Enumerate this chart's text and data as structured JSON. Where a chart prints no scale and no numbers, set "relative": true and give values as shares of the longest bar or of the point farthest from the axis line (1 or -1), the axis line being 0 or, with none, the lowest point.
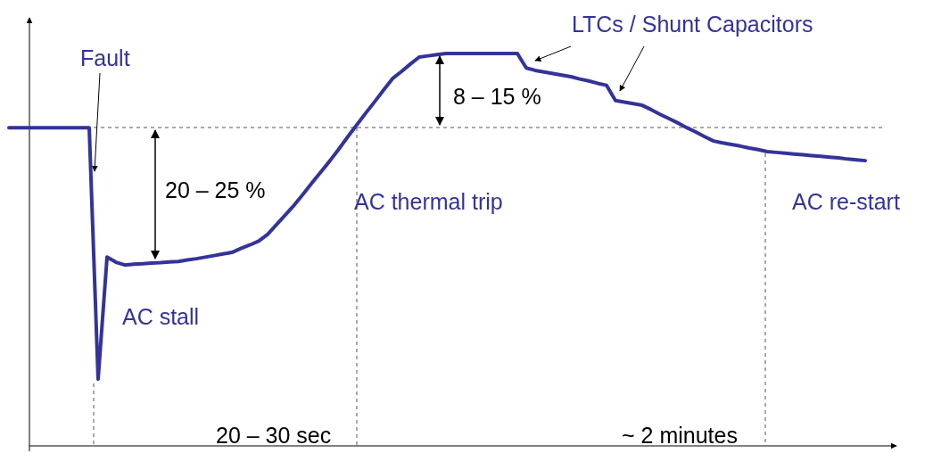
{
  "chart_data": {
    "type": "line",
    "relative": true,
    "line_style": "solid",
    "categories": [
      null,
      null,
      null,
      null,
      null,
      null,
      null,
      null,
      null,
      null,
      null,
      null,
      null,
      null,
      null,
      null,
      null,
      null,
      null,
      null,
      null,
      null,
      null,
      null,
      null,
      null,
      null,
      null,
      null,
      null,
      null,
      null,
      null,
      null,
      null,
      null,
      null,
      null,
      null,
      null,
      null,
      null,
      null,
      null,
      null,
      null,
      null,
      null,
      null,
      null,
      null,
      null,
      null,
      null,
      null,
      null,
      null,
      null,
      null,
      null,
      null,
      null,
      null,
      null,
      null,
      null,
      null,
      null,
      null,
      null,
      null,
      null,
      null,
      null,
      null,
      null,
      null,
      null,
      null,
      null,
      null,
      null,
      null,
      null,
      null,
      null,
      null,
      null,
      null,
      null,
      null,
      null,
      null,
      null,
      null,
      null,
      null
    ],
    "series": [
      {
        "color": "#33339a",
        "values": [
          0.811,
          0.811,
          0.811,
          0.811,
          0.811,
          0.811,
          0.811,
          0.811,
          0.811,
          0.811,
          0.17,
          0.481,
          0.468,
          0.461,
          0.463,
          0.464,
          0.466,
          0.467,
          0.469,
          0.47,
          0.474,
          0.477,
          0.481,
          0.485,
          0.489,
          0.493,
          0.503,
          0.512,
          0.522,
          0.539,
          0.564,
          0.589,
          0.614,
          0.642,
          0.671,
          0.699,
          0.727,
          0.757,
          0.788,
          0.818,
          0.848,
          0.877,
          0.907,
          0.936,
          0.954,
          0.973,
          0.991,
          0.994,
          0.997,
          1,
          1,
          1,
          1,
          1,
          1,
          1,
          1,
          1,
          0.963,
          0.957,
          0.953,
          0.949,
          0.945,
          0.941,
          0.935,
          0.93,
          0.924,
          0.919,
          0.88,
          0.876,
          0.872,
          0.868,
          0.857,
          0.845,
          0.834,
          0.823,
          0.811,
          0.8,
          0.788,
          0.777,
          0.772,
          0.768,
          0.764,
          0.759,
          0.755,
          0.75,
          0.748,
          0.746,
          0.744,
          0.742,
          0.74,
          0.738,
          0.736,
          0.734,
          0.731,
          0.729,
          0.727
        ]
      }
    ],
    "annotations": [
      "Fault",
      "20 – 25 %",
      "AC stall",
      "AC thermal trip",
      "AC re-start",
      "LTCs / Shunt Capacitors",
      "8 – 15 %",
      "20 – 30 sec",
      "~ 2 minutes"
    ]
  }
}
